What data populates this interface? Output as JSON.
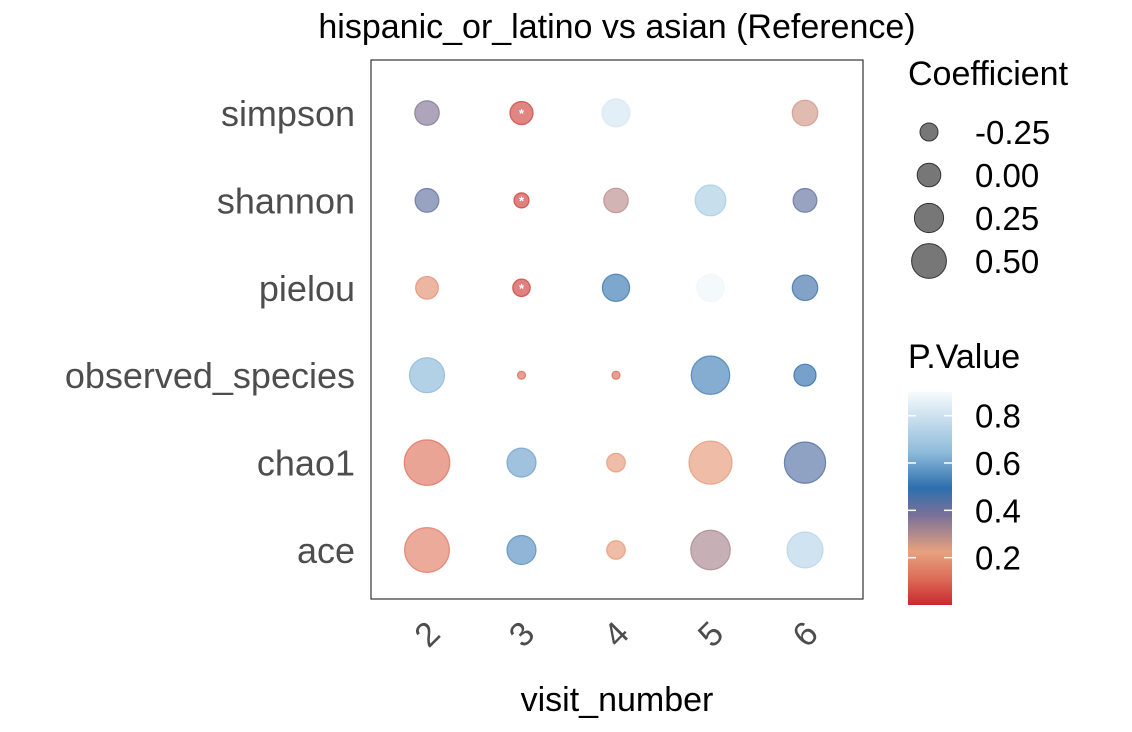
{
  "chart_data": {
    "type": "scatter",
    "title": "hispanic_or_latino vs asian (Reference)",
    "xlabel": "visit_number",
    "ylabel": "",
    "x_categories": [
      "2",
      "3",
      "4",
      "5",
      "6"
    ],
    "y_categories": [
      "simpson",
      "shannon",
      "pielou",
      "observed_species",
      "chao1",
      "ace"
    ],
    "points": [
      {
        "y": "simpson",
        "x": "2",
        "coefficient": 0.02,
        "p_value": 0.35,
        "significant": false
      },
      {
        "y": "simpson",
        "x": "3",
        "coefficient": -0.02,
        "p_value": 0.04,
        "significant": true
      },
      {
        "y": "simpson",
        "x": "4",
        "coefficient": 0.12,
        "p_value": 0.82,
        "significant": false
      },
      {
        "y": "simpson",
        "x": "6",
        "coefficient": 0.05,
        "p_value": 0.25,
        "significant": false
      },
      {
        "y": "shannon",
        "x": "2",
        "coefficient": 0.0,
        "p_value": 0.4,
        "significant": false
      },
      {
        "y": "shannon",
        "x": "3",
        "coefficient": -0.25,
        "p_value": 0.03,
        "significant": true
      },
      {
        "y": "shannon",
        "x": "4",
        "coefficient": 0.02,
        "p_value": 0.28,
        "significant": false
      },
      {
        "y": "shannon",
        "x": "5",
        "coefficient": 0.2,
        "p_value": 0.72,
        "significant": false
      },
      {
        "y": "shannon",
        "x": "6",
        "coefficient": 0.0,
        "p_value": 0.4,
        "significant": false
      },
      {
        "y": "pielou",
        "x": "2",
        "coefficient": -0.03,
        "p_value": 0.18,
        "significant": false
      },
      {
        "y": "pielou",
        "x": "3",
        "coefficient": -0.18,
        "p_value": 0.03,
        "significant": true
      },
      {
        "y": "pielou",
        "x": "4",
        "coefficient": 0.1,
        "p_value": 0.5,
        "significant": false
      },
      {
        "y": "pielou",
        "x": "5",
        "coefficient": 0.1,
        "p_value": 0.88,
        "significant": false
      },
      {
        "y": "pielou",
        "x": "6",
        "coefficient": 0.05,
        "p_value": 0.45,
        "significant": false
      },
      {
        "y": "observed_species",
        "x": "2",
        "coefficient": 0.32,
        "p_value": 0.65,
        "significant": false
      },
      {
        "y": "observed_species",
        "x": "3",
        "coefficient": -0.45,
        "p_value": 0.1,
        "significant": false
      },
      {
        "y": "observed_species",
        "x": "4",
        "coefficient": -0.45,
        "p_value": 0.1,
        "significant": false
      },
      {
        "y": "observed_species",
        "x": "5",
        "coefficient": 0.42,
        "p_value": 0.52,
        "significant": false
      },
      {
        "y": "observed_species",
        "x": "6",
        "coefficient": -0.05,
        "p_value": 0.48,
        "significant": false
      },
      {
        "y": "chao1",
        "x": "2",
        "coefficient": 0.62,
        "p_value": 0.12,
        "significant": false
      },
      {
        "y": "chao1",
        "x": "3",
        "coefficient": 0.15,
        "p_value": 0.6,
        "significant": false
      },
      {
        "y": "chao1",
        "x": "4",
        "coefficient": -0.15,
        "p_value": 0.2,
        "significant": false
      },
      {
        "y": "chao1",
        "x": "5",
        "coefficient": 0.55,
        "p_value": 0.2,
        "significant": false
      },
      {
        "y": "chao1",
        "x": "6",
        "coefficient": 0.5,
        "p_value": 0.42,
        "significant": false
      },
      {
        "y": "ace",
        "x": "2",
        "coefficient": 0.6,
        "p_value": 0.14,
        "significant": false
      },
      {
        "y": "ace",
        "x": "3",
        "coefficient": 0.15,
        "p_value": 0.55,
        "significant": false
      },
      {
        "y": "ace",
        "x": "4",
        "coefficient": -0.15,
        "p_value": 0.2,
        "significant": false
      },
      {
        "y": "ace",
        "x": "5",
        "coefficient": 0.45,
        "p_value": 0.3,
        "significant": false
      },
      {
        "y": "ace",
        "x": "6",
        "coefficient": 0.35,
        "p_value": 0.75,
        "significant": false
      }
    ],
    "size_legend": {
      "title": "Coefficient",
      "values": [
        -0.25,
        0.0,
        0.25,
        0.5
      ],
      "labels": [
        "-0.25",
        "0.00",
        "0.25",
        "0.50"
      ]
    },
    "color_legend": {
      "title": "P.Value",
      "values": [
        0.8,
        0.6,
        0.4,
        0.2
      ],
      "labels": [
        "0.8",
        "0.6",
        "0.4",
        "0.2"
      ],
      "range": [
        0.0,
        0.9
      ]
    },
    "colors": {
      "low": "#c8292e",
      "mid_low": "#e7a17f",
      "mid": "#2e6fae",
      "mid_high": "#9fc7e0",
      "high": "#f7fbfd",
      "legend_point": "#555555"
    },
    "legend_placement": "right",
    "grid": false
  }
}
